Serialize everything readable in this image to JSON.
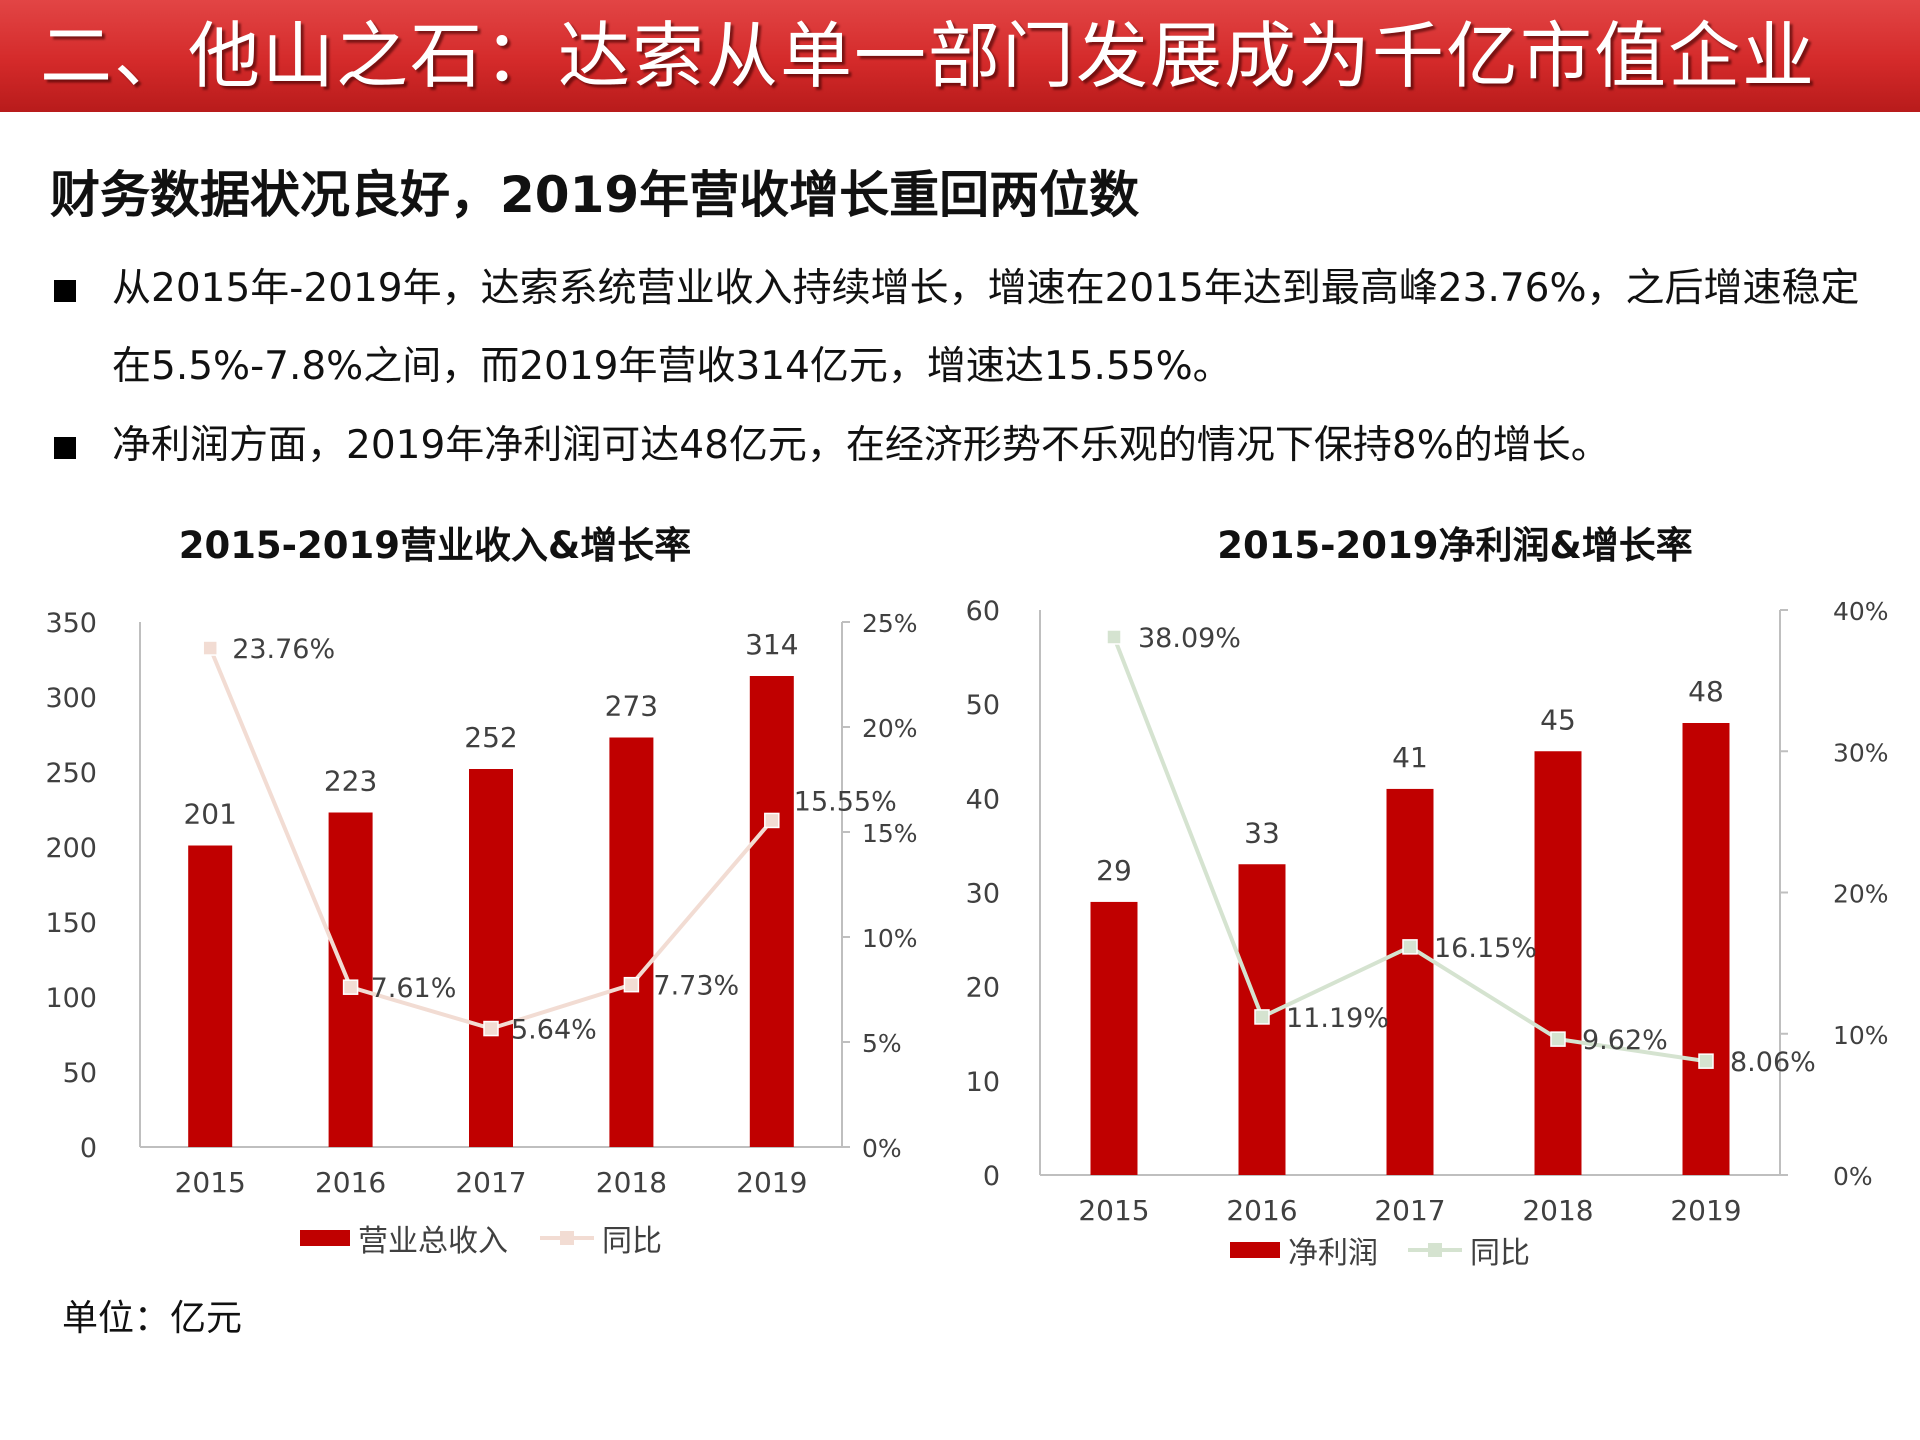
{
  "slide": {
    "title": "二、他山之石：达索从单一部门发展成为千亿市值企业",
    "subtitle": "财务数据状况良好，2019年营收增长重回两位数",
    "bullets": [
      "从2015年-2019年，达索系统营业收入持续增长，增速在2015年达到最高峰23.76%，之后增速稳定在5.5%-7.8%之间，而2019年营收314亿元，增速达15.55%。",
      "净利润方面，2019年净利润可达48亿元，在经济形势不乐观的情况下保持8%的增长。"
    ],
    "unit_note": "单位：亿元"
  },
  "colors": {
    "banner": "#d42a2a",
    "bar": "#c00000",
    "revenue_line": "#f2dcd3",
    "profit_line": "#d5e3d0",
    "axis": "#bfbfbf"
  },
  "chart_data": [
    {
      "type": "bar",
      "title": "2015-2019营业收入&增长率",
      "categories": [
        "2015",
        "2016",
        "2017",
        "2018",
        "2019"
      ],
      "series": [
        {
          "name": "营业总收入",
          "type": "bar",
          "axis": "left",
          "values": [
            201,
            223,
            252,
            273,
            314
          ],
          "labels": [
            "201",
            "223",
            "252",
            "273",
            "314"
          ]
        },
        {
          "name": "同比",
          "type": "line",
          "axis": "right",
          "values": [
            23.76,
            7.61,
            5.64,
            7.73,
            15.55
          ],
          "labels": [
            "23.76%",
            "7.61%",
            "5.64%",
            "7.73%",
            "15.55%"
          ]
        }
      ],
      "left_axis": {
        "min": 0,
        "max": 350,
        "ticks": [
          "0",
          "50",
          "100",
          "150",
          "200",
          "250",
          "300",
          "350"
        ]
      },
      "right_axis": {
        "min": 0,
        "max": 25,
        "ticks": [
          "0%",
          "5%",
          "10%",
          "15%",
          "20%",
          "25%"
        ]
      },
      "legend": "bottom"
    },
    {
      "type": "bar",
      "title": "2015-2019净利润&增长率",
      "categories": [
        "2015",
        "2016",
        "2017",
        "2018",
        "2019"
      ],
      "series": [
        {
          "name": "净利润",
          "type": "bar",
          "axis": "left",
          "values": [
            29,
            33,
            41,
            45,
            48
          ],
          "labels": [
            "29",
            "33",
            "41",
            "45",
            "48"
          ]
        },
        {
          "name": "同比",
          "type": "line",
          "axis": "right",
          "values": [
            38.09,
            11.19,
            16.15,
            9.62,
            8.06
          ],
          "labels": [
            "38.09%",
            "11.19%",
            "16.15%",
            "9.62%",
            "8.06%"
          ]
        }
      ],
      "left_axis": {
        "min": 0,
        "max": 60,
        "ticks": [
          "0",
          "10",
          "20",
          "30",
          "40",
          "50",
          "60"
        ]
      },
      "right_axis": {
        "min": 0,
        "max": 40,
        "ticks": [
          "0%",
          "10%",
          "20%",
          "30%",
          "40%"
        ]
      },
      "legend": "bottom"
    }
  ]
}
